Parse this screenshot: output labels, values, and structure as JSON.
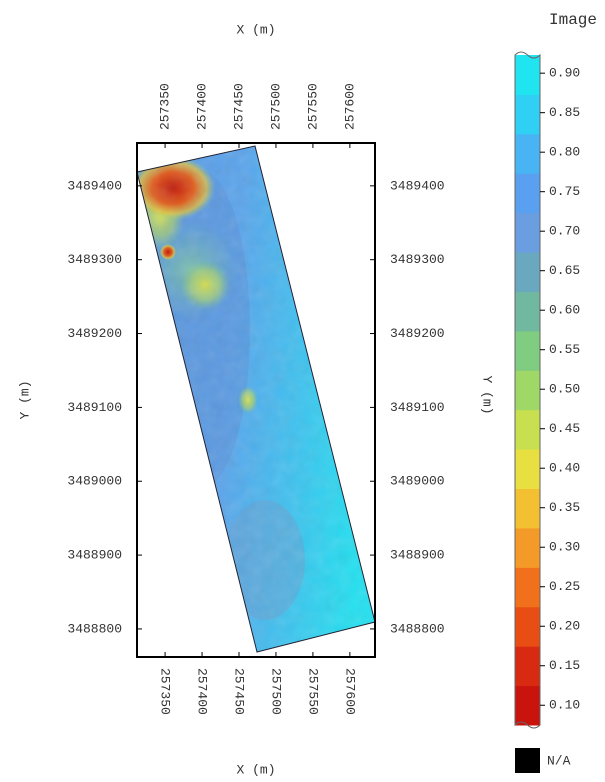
{
  "map": {
    "x_label": "X (m)",
    "y_label": "Y (m)",
    "xlim": [
      257312,
      257634
    ],
    "ylim": [
      3488762,
      3489458
    ],
    "xticks": [
      257350,
      257400,
      257450,
      257500,
      257550,
      257600
    ],
    "yticks": [
      3488800,
      3488900,
      3489000,
      3489100,
      3489200,
      3489300,
      3489400
    ]
  },
  "colorbar": {
    "title": "Image",
    "lim": [
      0.075,
      0.923
    ],
    "ticks": [
      {
        "value": 0.1,
        "label": "0.10"
      },
      0.15,
      {
        "value": 0.2,
        "label": "0.20"
      },
      0.25,
      {
        "value": 0.3,
        "label": "0.30"
      },
      0.35,
      {
        "value": 0.4,
        "label": "0.40"
      },
      0.45,
      {
        "value": 0.5,
        "label": "0.50"
      },
      0.55,
      {
        "value": 0.6,
        "label": "0.60"
      },
      0.65,
      {
        "value": 0.7,
        "label": "0.70"
      },
      0.75,
      {
        "value": 0.8,
        "label": "0.80"
      },
      0.85,
      {
        "value": 0.9,
        "label": "0.90"
      }
    ],
    "colors": [
      "#c8140c",
      "#d82a10",
      "#e84d14",
      "#f0701c",
      "#f49a28",
      "#f2c030",
      "#e8e040",
      "#c8e050",
      "#a0d868",
      "#80cc80",
      "#70b8a0",
      "#6aa8c0",
      "#6a9ee0",
      "#5aa0f0",
      "#48b4f4",
      "#30d0f4",
      "#20e4f0"
    ],
    "na_label": "N/A"
  }
}
